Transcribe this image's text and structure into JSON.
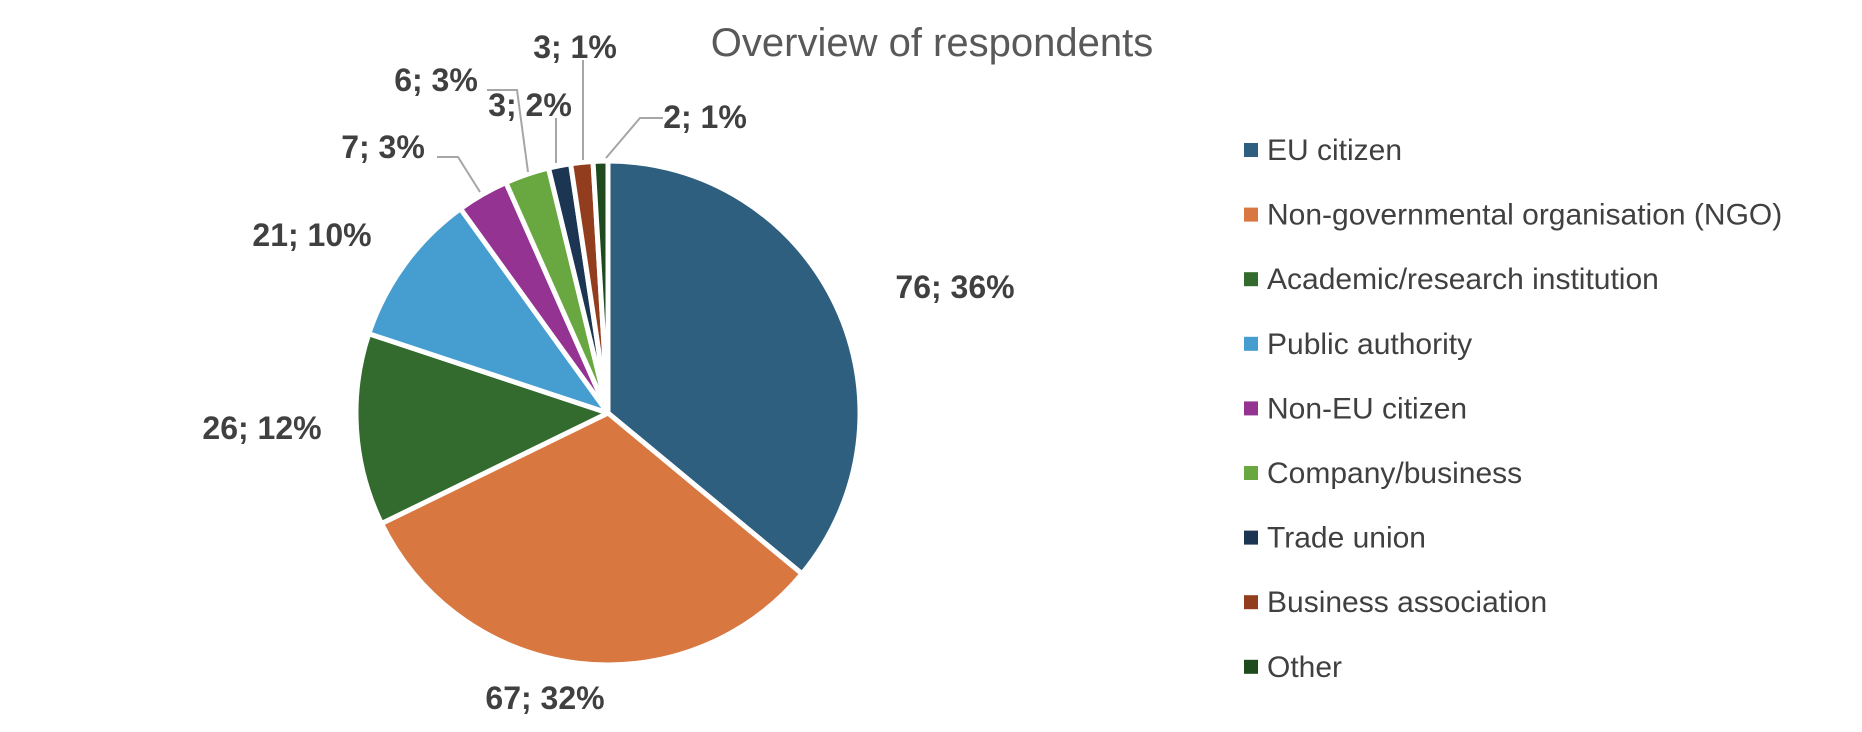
{
  "chart_data": {
    "type": "pie",
    "title": "Overview of respondents",
    "legend_position": "right",
    "slices": [
      {
        "label": "EU citizen",
        "value": 76,
        "percent": 36,
        "data_label": "76; 36%",
        "color": "#2e5f7f"
      },
      {
        "label": "Non-governmental organisation (NGO)",
        "value": 67,
        "percent": 32,
        "data_label": "67; 32%",
        "color": "#d97740"
      },
      {
        "label": "Academic/research institution",
        "value": 26,
        "percent": 12,
        "data_label": "26; 12%",
        "color": "#336a2d"
      },
      {
        "label": "Public authority",
        "value": 21,
        "percent": 10,
        "data_label": "21; 10%",
        "color": "#469ed0"
      },
      {
        "label": "Non-EU citizen",
        "value": 7,
        "percent": 3,
        "data_label": "7; 3%",
        "color": "#943392"
      },
      {
        "label": "Company/business",
        "value": 6,
        "percent": 3,
        "data_label": "6; 3%",
        "color": "#69a840"
      },
      {
        "label": "Trade union",
        "value": 3,
        "percent": 2,
        "data_label": "3; 2%",
        "color": "#1b3552"
      },
      {
        "label": "Business association",
        "value": 3,
        "percent": 1,
        "data_label": "3; 1%",
        "color": "#923e1e"
      },
      {
        "label": "Other",
        "value": 2,
        "percent": 1,
        "data_label": "2; 1%",
        "color": "#1f4a1e"
      }
    ]
  }
}
